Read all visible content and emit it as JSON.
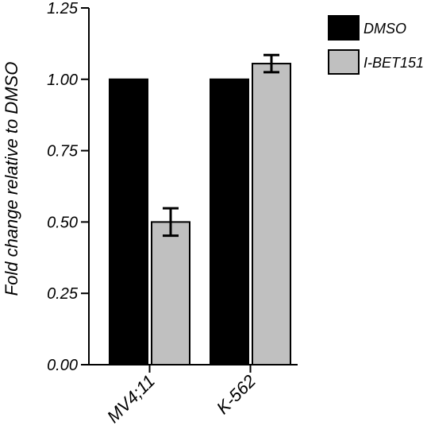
{
  "chart_data": {
    "type": "bar",
    "title": "",
    "xlabel": "",
    "ylabel": "Fold change relative to DMSO",
    "categories": [
      "MV4;11",
      "K-562"
    ],
    "series": [
      {
        "name": "DMSO",
        "values": [
          1.0,
          1.0
        ],
        "errors": [
          0,
          0
        ],
        "color": "#000000"
      },
      {
        "name": "I-BET151",
        "values": [
          0.5,
          1.055
        ],
        "errors": [
          0.048,
          0.03
        ],
        "color": "#c0c0c0"
      }
    ],
    "ylim": [
      0,
      1.25
    ],
    "yticks": [
      "0.00",
      "0.25",
      "0.50",
      "0.75",
      "1.00",
      "1.25"
    ],
    "legend_position": "top-right",
    "grid": false
  }
}
